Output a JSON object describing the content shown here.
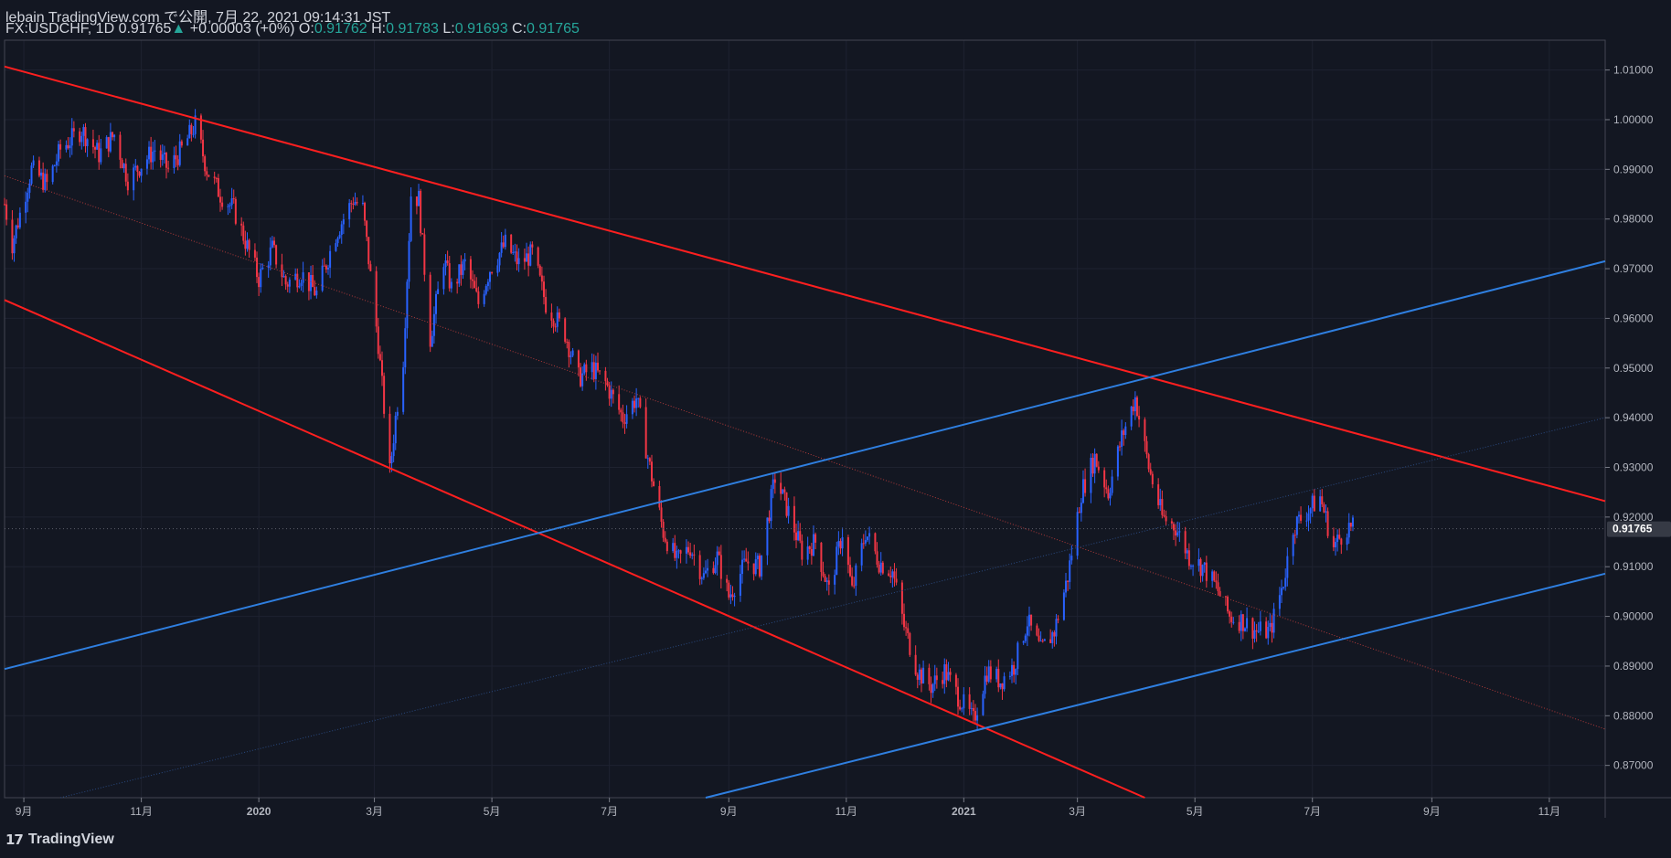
{
  "header": {
    "publish_line": "lebain TradingView.com で公開, 7月 22, 2021 09:14:31 JST",
    "symbol": "FX:USDCHF, 1D",
    "last": "0.91765",
    "change_arrow": "▲",
    "change": "+0.00003 (+0%)",
    "o_label": "O:",
    "o_value": "0.91762",
    "h_label": "H:",
    "h_value": "0.91783",
    "l_label": "L:",
    "l_value": "0.91693",
    "c_label": "C:",
    "c_value": "0.91765"
  },
  "branding": {
    "logo_icon": "tradingview-logo-icon",
    "logo_text": "TradingView"
  },
  "colors": {
    "background": "#131722",
    "up": "#2962ff",
    "down": "#f23645",
    "red_line": "#ff1f1f",
    "blue_line": "#2f7fe0",
    "grid": "#1e2230",
    "text": "#b2b5be",
    "price_label_bg": "#363a45"
  },
  "chart_data": {
    "type": "candlestick",
    "title": "",
    "price_axis": {
      "ticks": [
        "1.01000",
        "1.00000",
        "0.99000",
        "0.98000",
        "0.97000",
        "0.96000",
        "0.95000",
        "0.94000",
        "0.93000",
        "0.92000",
        "0.91000",
        "0.90000",
        "0.89000",
        "0.88000",
        "0.87000"
      ],
      "tick_values": [
        1.01,
        1.0,
        0.99,
        0.98,
        0.97,
        0.96,
        0.95,
        0.94,
        0.93,
        0.92,
        0.91,
        0.9,
        0.89,
        0.88,
        0.87
      ],
      "range": [
        0.8635,
        1.016
      ],
      "current_price_label": "0.91765",
      "current_price": 0.91765
    },
    "time_axis": {
      "range": [
        "2019-08-22",
        "2021-11-30"
      ],
      "ticks": [
        {
          "label": "9月",
          "date": "2019-09-01"
        },
        {
          "label": "11月",
          "date": "2019-11-01"
        },
        {
          "label": "2020",
          "date": "2020-01-01"
        },
        {
          "label": "3月",
          "date": "2020-03-01"
        },
        {
          "label": "5月",
          "date": "2020-05-01"
        },
        {
          "label": "7月",
          "date": "2020-07-01"
        },
        {
          "label": "9月",
          "date": "2020-09-01"
        },
        {
          "label": "11月",
          "date": "2020-11-01"
        },
        {
          "label": "2021",
          "date": "2021-01-01"
        },
        {
          "label": "3月",
          "date": "2021-03-01"
        },
        {
          "label": "5月",
          "date": "2021-05-01"
        },
        {
          "label": "7月",
          "date": "2021-07-01"
        },
        {
          "label": "9月",
          "date": "2021-09-01"
        },
        {
          "label": "11月",
          "date": "2021-11-01"
        }
      ]
    },
    "price_path": [
      {
        "date": "2019-08-22",
        "price": 0.983
      },
      {
        "date": "2019-08-26",
        "price": 0.975
      },
      {
        "date": "2019-09-05",
        "price": 0.99
      },
      {
        "date": "2019-09-13",
        "price": 0.987
      },
      {
        "date": "2019-09-20",
        "price": 0.994
      },
      {
        "date": "2019-10-01",
        "price": 0.998
      },
      {
        "date": "2019-10-10",
        "price": 0.993
      },
      {
        "date": "2019-10-18",
        "price": 0.997
      },
      {
        "date": "2019-10-25",
        "price": 0.988
      },
      {
        "date": "2019-11-01",
        "price": 0.991
      },
      {
        "date": "2019-11-08",
        "price": 0.994
      },
      {
        "date": "2019-11-15",
        "price": 0.99
      },
      {
        "date": "2019-11-22",
        "price": 0.994
      },
      {
        "date": "2019-11-29",
        "price": 0.999
      },
      {
        "date": "2019-12-05",
        "price": 0.99
      },
      {
        "date": "2019-12-12",
        "price": 0.985
      },
      {
        "date": "2019-12-19",
        "price": 0.982
      },
      {
        "date": "2020-01-01",
        "price": 0.968
      },
      {
        "date": "2020-01-08",
        "price": 0.974
      },
      {
        "date": "2020-01-15",
        "price": 0.967
      },
      {
        "date": "2020-01-23",
        "price": 0.969
      },
      {
        "date": "2020-01-31",
        "price": 0.965
      },
      {
        "date": "2020-02-10",
        "price": 0.977
      },
      {
        "date": "2020-02-19",
        "price": 0.984
      },
      {
        "date": "2020-02-24",
        "price": 0.982
      },
      {
        "date": "2020-03-03",
        "price": 0.955
      },
      {
        "date": "2020-03-09",
        "price": 0.929
      },
      {
        "date": "2020-03-12",
        "price": 0.94
      },
      {
        "date": "2020-03-16",
        "price": 0.952
      },
      {
        "date": "2020-03-20",
        "price": 0.985
      },
      {
        "date": "2020-03-24",
        "price": 0.984
      },
      {
        "date": "2020-03-30",
        "price": 0.956
      },
      {
        "date": "2020-04-06",
        "price": 0.972
      },
      {
        "date": "2020-04-10",
        "price": 0.966
      },
      {
        "date": "2020-04-17",
        "price": 0.971
      },
      {
        "date": "2020-04-24",
        "price": 0.963
      },
      {
        "date": "2020-04-30",
        "price": 0.97
      },
      {
        "date": "2020-05-08",
        "price": 0.975
      },
      {
        "date": "2020-05-15",
        "price": 0.971
      },
      {
        "date": "2020-05-22",
        "price": 0.973
      },
      {
        "date": "2020-05-29",
        "price": 0.963
      },
      {
        "date": "2020-06-08",
        "price": 0.957
      },
      {
        "date": "2020-06-15",
        "price": 0.948
      },
      {
        "date": "2020-06-22",
        "price": 0.95
      },
      {
        "date": "2020-06-29",
        "price": 0.947
      },
      {
        "date": "2020-07-08",
        "price": 0.94
      },
      {
        "date": "2020-07-15",
        "price": 0.944
      },
      {
        "date": "2020-07-22",
        "price": 0.93
      },
      {
        "date": "2020-07-29",
        "price": 0.917
      },
      {
        "date": "2020-08-05",
        "price": 0.911
      },
      {
        "date": "2020-08-12",
        "price": 0.914
      },
      {
        "date": "2020-08-19",
        "price": 0.908
      },
      {
        "date": "2020-08-26",
        "price": 0.912
      },
      {
        "date": "2020-09-01",
        "price": 0.904
      },
      {
        "date": "2020-09-10",
        "price": 0.911
      },
      {
        "date": "2020-09-17",
        "price": 0.91
      },
      {
        "date": "2020-09-25",
        "price": 0.928
      },
      {
        "date": "2020-10-02",
        "price": 0.921
      },
      {
        "date": "2020-10-09",
        "price": 0.913
      },
      {
        "date": "2020-10-16",
        "price": 0.915
      },
      {
        "date": "2020-10-23",
        "price": 0.905
      },
      {
        "date": "2020-10-30",
        "price": 0.917
      },
      {
        "date": "2020-11-04",
        "price": 0.905
      },
      {
        "date": "2020-11-11",
        "price": 0.917
      },
      {
        "date": "2020-11-18",
        "price": 0.911
      },
      {
        "date": "2020-11-25",
        "price": 0.909
      },
      {
        "date": "2020-12-01",
        "price": 0.898
      },
      {
        "date": "2020-12-08",
        "price": 0.889
      },
      {
        "date": "2020-12-15",
        "price": 0.886
      },
      {
        "date": "2020-12-22",
        "price": 0.889
      },
      {
        "date": "2020-12-29",
        "price": 0.884
      },
      {
        "date": "2021-01-06",
        "price": 0.879
      },
      {
        "date": "2021-01-13",
        "price": 0.889
      },
      {
        "date": "2021-01-20",
        "price": 0.887
      },
      {
        "date": "2021-01-27",
        "price": 0.89
      },
      {
        "date": "2021-02-03",
        "price": 0.899
      },
      {
        "date": "2021-02-10",
        "price": 0.893
      },
      {
        "date": "2021-02-17",
        "price": 0.897
      },
      {
        "date": "2021-02-24",
        "price": 0.908
      },
      {
        "date": "2021-03-03",
        "price": 0.925
      },
      {
        "date": "2021-03-10",
        "price": 0.932
      },
      {
        "date": "2021-03-17",
        "price": 0.925
      },
      {
        "date": "2021-03-24",
        "price": 0.936
      },
      {
        "date": "2021-03-31",
        "price": 0.944
      },
      {
        "date": "2021-04-07",
        "price": 0.93
      },
      {
        "date": "2021-04-14",
        "price": 0.92
      },
      {
        "date": "2021-04-21",
        "price": 0.918
      },
      {
        "date": "2021-04-28",
        "price": 0.912
      },
      {
        "date": "2021-05-05",
        "price": 0.91
      },
      {
        "date": "2021-05-12",
        "price": 0.906
      },
      {
        "date": "2021-05-19",
        "price": 0.9
      },
      {
        "date": "2021-05-26",
        "price": 0.899
      },
      {
        "date": "2021-06-02",
        "price": 0.897
      },
      {
        "date": "2021-06-09",
        "price": 0.897
      },
      {
        "date": "2021-06-16",
        "price": 0.907
      },
      {
        "date": "2021-06-21",
        "price": 0.918
      },
      {
        "date": "2021-06-28",
        "price": 0.921
      },
      {
        "date": "2021-07-05",
        "price": 0.924
      },
      {
        "date": "2021-07-12",
        "price": 0.914
      },
      {
        "date": "2021-07-19",
        "price": 0.918
      },
      {
        "date": "2021-07-22",
        "price": 0.91765
      }
    ],
    "trendlines": [
      {
        "color": "red",
        "style": "solid",
        "from": {
          "date": "2019-08-22",
          "price": 1.0107
        },
        "to": {
          "date": "2021-11-30",
          "price": 0.9232
        }
      },
      {
        "color": "red",
        "style": "solid",
        "from": {
          "date": "2019-08-22",
          "price": 0.9637
        },
        "to": {
          "date": "2021-04-05",
          "price": 0.8635
        }
      },
      {
        "color": "red",
        "style": "dotted",
        "from": {
          "date": "2019-08-22",
          "price": 0.9887
        },
        "to": {
          "date": "2021-11-30",
          "price": 0.8773
        }
      },
      {
        "color": "blue",
        "style": "solid",
        "from": {
          "date": "2019-08-22",
          "price": 0.8894
        },
        "to": {
          "date": "2021-11-30",
          "price": 0.9715
        }
      },
      {
        "color": "blue",
        "style": "solid",
        "from": {
          "date": "2020-08-20",
          "price": 0.8635
        },
        "to": {
          "date": "2021-11-30",
          "price": 0.9086
        }
      },
      {
        "color": "blue",
        "style": "dotted",
        "from": {
          "date": "2019-09-20",
          "price": 0.8635
        },
        "to": {
          "date": "2021-11-30",
          "price": 0.94
        }
      }
    ]
  }
}
